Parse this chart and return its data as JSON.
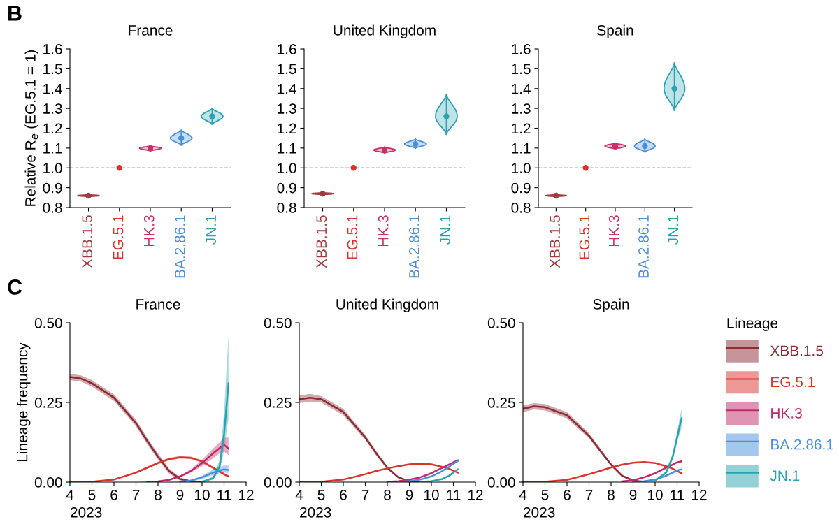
{
  "chart_data": [
    {
      "type": "scatter",
      "title": "France",
      "ylabel": "Relative R$_{e}$ (EG.5.1 = 1)",
      "annotations": [
        "B"
      ],
      "categories": [
        "XBB.1.5",
        "EG.5.1",
        "HK.3",
        "BA.2.86.1",
        "JN.1"
      ],
      "values": [
        0.86,
        1.0,
        1.1,
        1.15,
        1.26
      ],
      "errors": [
        [
          0.855,
          0.865
        ],
        null,
        [
          1.085,
          1.11
        ],
        [
          1.115,
          1.19
        ],
        [
          1.22,
          1.3
        ]
      ],
      "colors": [
        "#a33a3f",
        "#d9342b",
        "#c8306a",
        "#4a8fdc",
        "#2aa3b0"
      ],
      "ylim": [
        0.8,
        1.6
      ],
      "yticks": [
        0.8,
        0.9,
        {
          "value": 1.0,
          "label": "1.0"
        },
        1.1,
        1.2,
        1.3,
        1.4,
        1.5,
        1.6
      ],
      "ref_lines": [
        {
          "axis": "y",
          "value": 1.0,
          "color": "#aaaaaa",
          "line_style": "dashed"
        }
      ],
      "marker": "circle"
    },
    {
      "type": "scatter",
      "title": "United Kingdom",
      "categories": [
        "XBB.1.5",
        "EG.5.1",
        "HK.3",
        "BA.2.86.1",
        "JN.1"
      ],
      "values": [
        0.87,
        1.0,
        1.09,
        1.12,
        1.26
      ],
      "errors": [
        [
          0.865,
          0.875
        ],
        null,
        [
          1.075,
          1.105
        ],
        [
          1.1,
          1.145
        ],
        [
          1.17,
          1.37
        ]
      ],
      "colors": [
        "#a33a3f",
        "#d9342b",
        "#c8306a",
        "#4a8fdc",
        "#2aa3b0"
      ],
      "ylim": [
        0.8,
        1.6
      ],
      "yticks": [
        0.8,
        0.9,
        {
          "value": 1.0,
          "label": "1.0"
        },
        1.1,
        1.2,
        1.3,
        1.4,
        1.5,
        1.6
      ],
      "ref_lines": [
        {
          "axis": "y",
          "value": 1.0,
          "color": "#aaaaaa",
          "line_style": "dashed"
        }
      ],
      "marker": "circle"
    },
    {
      "type": "scatter",
      "title": "Spain",
      "categories": [
        "XBB.1.5",
        "EG.5.1",
        "HK.3",
        "BA.2.86.1",
        "JN.1"
      ],
      "values": [
        0.86,
        1.0,
        1.11,
        1.11,
        1.4
      ],
      "errors": [
        [
          0.855,
          0.865
        ],
        null,
        [
          1.095,
          1.125
        ],
        [
          1.08,
          1.145
        ],
        [
          1.29,
          1.53
        ]
      ],
      "colors": [
        "#a33a3f",
        "#d9342b",
        "#c8306a",
        "#4a8fdc",
        "#2aa3b0"
      ],
      "ylim": [
        0.8,
        1.6
      ],
      "yticks": [
        0.8,
        0.9,
        {
          "value": 1.0,
          "label": "1.0"
        },
        1.1,
        1.2,
        1.3,
        1.4,
        1.5,
        1.6
      ],
      "ref_lines": [
        {
          "axis": "y",
          "value": 1.0,
          "color": "#aaaaaa",
          "line_style": "dashed"
        }
      ],
      "marker": "circle"
    },
    {
      "type": "line",
      "title": "France",
      "xlabel": "2023",
      "ylabel": "Lineage frequency",
      "annotations": [
        "C"
      ],
      "x": [
        4,
        4.5,
        5,
        6,
        7,
        7.5,
        8,
        8.5,
        9,
        9.5,
        10,
        10.5,
        10.8,
        11,
        11.2
      ],
      "xlim": [
        4,
        12
      ],
      "xticks": [
        4,
        5,
        6,
        7,
        8,
        9,
        10,
        11,
        12
      ],
      "ylim": [
        0,
        0.5
      ],
      "yticks": [
        {
          "value": 0,
          "label": "0.00"
        },
        {
          "value": 0.25,
          "label": "0.25"
        },
        {
          "value": 0.5,
          "label": "0.50"
        }
      ],
      "series": [
        {
          "color": "#8e2c35",
          "values": [
            0.33,
            0.325,
            0.31,
            0.265,
            0.185,
            0.13,
            0.08,
            0.035,
            0.01,
            0.003,
            0.001,
            null,
            null,
            null,
            null
          ],
          "lower": [
            0.32,
            0.315,
            0.3,
            0.255,
            0.175,
            0.12,
            0.07,
            0.027,
            0.005,
            0.001,
            0,
            0,
            0,
            0,
            0
          ],
          "upper": [
            0.34,
            0.335,
            0.32,
            0.275,
            0.195,
            0.14,
            0.09,
            0.043,
            0.015,
            0.005,
            0.002,
            0,
            0,
            0,
            0
          ]
        },
        {
          "color": "#d9342b",
          "values": [
            0,
            0,
            0.001,
            0.008,
            0.03,
            0.045,
            0.06,
            0.072,
            0.078,
            0.076,
            0.065,
            0.045,
            0.033,
            0.025,
            0.018
          ],
          "lower": [
            0,
            0,
            0,
            0.006,
            0.027,
            0.042,
            0.056,
            0.068,
            0.074,
            0.072,
            0.061,
            0.041,
            0.029,
            0.021,
            0.014
          ],
          "upper": [
            0,
            0,
            0.002,
            0.01,
            0.033,
            0.048,
            0.064,
            0.076,
            0.082,
            0.08,
            0.069,
            0.049,
            0.037,
            0.029,
            0.022
          ]
        },
        {
          "color": "#c12a6a",
          "values": [
            null,
            null,
            null,
            null,
            null,
            0.001,
            0.002,
            0.007,
            0.018,
            0.035,
            0.06,
            0.09,
            0.107,
            0.117,
            0.105
          ],
          "lower": [
            0,
            0,
            0,
            0,
            0,
            0,
            0.001,
            0.005,
            0.015,
            0.03,
            0.05,
            0.075,
            0.09,
            0.095,
            0.085
          ],
          "upper": [
            0,
            0,
            0,
            0,
            0,
            0.002,
            0.003,
            0.009,
            0.021,
            0.04,
            0.07,
            0.105,
            0.125,
            0.14,
            0.14
          ]
        },
        {
          "color": "#4a8fdc",
          "values": [
            null,
            null,
            null,
            null,
            null,
            null,
            null,
            null,
            0.001,
            0.005,
            0.015,
            0.03,
            0.037,
            0.04,
            0.038
          ],
          "lower": [
            0,
            0,
            0,
            0,
            0,
            0,
            0,
            0,
            0,
            0.003,
            0.01,
            0.022,
            0.028,
            0.03,
            0.028
          ],
          "upper": [
            0,
            0,
            0,
            0,
            0,
            0,
            0,
            0,
            0.002,
            0.007,
            0.02,
            0.04,
            0.048,
            0.052,
            0.052
          ]
        },
        {
          "color": "#2aa3b0",
          "values": [
            null,
            null,
            null,
            null,
            null,
            null,
            null,
            null,
            null,
            null,
            0.001,
            0.012,
            0.05,
            0.15,
            0.31
          ],
          "lower": [
            0,
            0,
            0,
            0,
            0,
            0,
            0,
            0,
            0,
            0,
            0,
            0.008,
            0.035,
            0.1,
            0.2
          ],
          "upper": [
            0,
            0,
            0,
            0,
            0,
            0,
            0,
            0,
            0,
            0,
            0.002,
            0.018,
            0.07,
            0.22,
            0.46
          ]
        }
      ]
    },
    {
      "type": "line",
      "title": "United Kingdom",
      "xlabel": "2023",
      "x": [
        4,
        4.5,
        5,
        6,
        7,
        7.5,
        8,
        8.5,
        9,
        9.5,
        10,
        10.5,
        10.8,
        11,
        11.2
      ],
      "xlim": [
        4,
        12
      ],
      "xticks": [
        4,
        5,
        6,
        7,
        8,
        9,
        10,
        11,
        12
      ],
      "ylim": [
        0,
        0.5
      ],
      "yticks": [
        {
          "value": 0,
          "label": "0.00"
        },
        {
          "value": 0.25,
          "label": "0.25"
        },
        {
          "value": 0.5,
          "label": "0.50"
        }
      ],
      "series": [
        {
          "color": "#8e2c35",
          "values": [
            0.26,
            0.265,
            0.26,
            0.22,
            0.14,
            0.09,
            0.045,
            0.015,
            0.003,
            0.001,
            null,
            null,
            null,
            null,
            null
          ],
          "lower": [
            0.248,
            0.253,
            0.25,
            0.21,
            0.132,
            0.083,
            0.04,
            0.012,
            0.001,
            0,
            0,
            0,
            0,
            0,
            0
          ],
          "upper": [
            0.272,
            0.277,
            0.27,
            0.23,
            0.148,
            0.097,
            0.05,
            0.018,
            0.005,
            0.002,
            0,
            0,
            0,
            0,
            0
          ]
        },
        {
          "color": "#d9342b",
          "values": [
            0,
            0,
            0.001,
            0.008,
            0.025,
            0.035,
            0.043,
            0.05,
            0.056,
            0.058,
            0.056,
            0.048,
            0.042,
            0.036,
            0.03
          ]
        },
        {
          "color": "#c12a6a",
          "values": [
            null,
            null,
            null,
            null,
            null,
            null,
            0.001,
            0.003,
            0.008,
            0.015,
            0.028,
            0.045,
            0.055,
            0.062,
            0.068
          ]
        },
        {
          "color": "#4a8fdc",
          "values": [
            null,
            null,
            null,
            null,
            null,
            null,
            null,
            0.001,
            0.003,
            0.008,
            0.018,
            0.035,
            0.048,
            0.058,
            0.066
          ]
        },
        {
          "color": "#2aa3b0",
          "values": [
            null,
            null,
            null,
            null,
            null,
            null,
            null,
            null,
            null,
            0.001,
            0.003,
            0.01,
            0.02,
            0.03,
            0.04
          ]
        }
      ]
    },
    {
      "type": "line",
      "title": "Spain",
      "xlabel": "2023",
      "x": [
        4,
        4.5,
        5,
        6,
        7,
        7.5,
        8,
        8.5,
        9,
        9.5,
        10,
        10.5,
        10.8,
        11,
        11.2
      ],
      "xlim": [
        4,
        12
      ],
      "xticks": [
        4,
        5,
        6,
        7,
        8,
        9,
        10,
        11,
        12
      ],
      "ylim": [
        0,
        0.5
      ],
      "yticks": [
        {
          "value": 0,
          "label": "0.00"
        },
        {
          "value": 0.25,
          "label": "0.25"
        },
        {
          "value": 0.5,
          "label": "0.50"
        }
      ],
      "legend": "right",
      "legend_title": "Lineage",
      "series": [
        {
          "name": "XBB.1.5",
          "color": "#8e2c35",
          "values": [
            0.23,
            0.238,
            0.235,
            0.21,
            0.145,
            0.1,
            0.055,
            0.02,
            0.005,
            0.001,
            null,
            null,
            null,
            null,
            null
          ],
          "lower": [
            0.22,
            0.228,
            0.225,
            0.2,
            0.137,
            0.093,
            0.05,
            0.016,
            0.003,
            0,
            0,
            0,
            0,
            0,
            0
          ],
          "upper": [
            0.24,
            0.248,
            0.245,
            0.22,
            0.153,
            0.107,
            0.06,
            0.024,
            0.007,
            0.002,
            0,
            0,
            0,
            0,
            0
          ]
        },
        {
          "name": "EG.5.1",
          "color": "#d9342b",
          "values": [
            0,
            0,
            0.001,
            0.007,
            0.025,
            0.035,
            0.046,
            0.055,
            0.061,
            0.063,
            0.06,
            0.05,
            0.042,
            0.035,
            0.028
          ]
        },
        {
          "name": "HK.3",
          "color": "#c12a6a",
          "values": [
            null,
            null,
            null,
            null,
            null,
            null,
            null,
            0.002,
            0.006,
            0.015,
            0.028,
            0.045,
            0.055,
            0.062,
            0.065
          ]
        },
        {
          "name": "BA.2.86.1",
          "color": "#4a8fdc",
          "values": [
            null,
            null,
            null,
            null,
            null,
            null,
            null,
            null,
            0.001,
            0.003,
            0.008,
            0.02,
            0.03,
            0.037,
            0.04
          ]
        },
        {
          "name": "JN.1",
          "color": "#2aa3b0",
          "values": [
            null,
            null,
            null,
            null,
            null,
            null,
            null,
            null,
            null,
            null,
            0.005,
            0.03,
            0.08,
            0.14,
            0.2
          ],
          "lower": [
            0,
            0,
            0,
            0,
            0,
            0,
            0,
            0,
            0,
            0,
            0.004,
            0.025,
            0.07,
            0.125,
            0.17
          ],
          "upper": [
            0,
            0,
            0,
            0,
            0,
            0,
            0,
            0,
            0,
            0,
            0.006,
            0.035,
            0.09,
            0.16,
            0.23
          ]
        }
      ]
    }
  ]
}
